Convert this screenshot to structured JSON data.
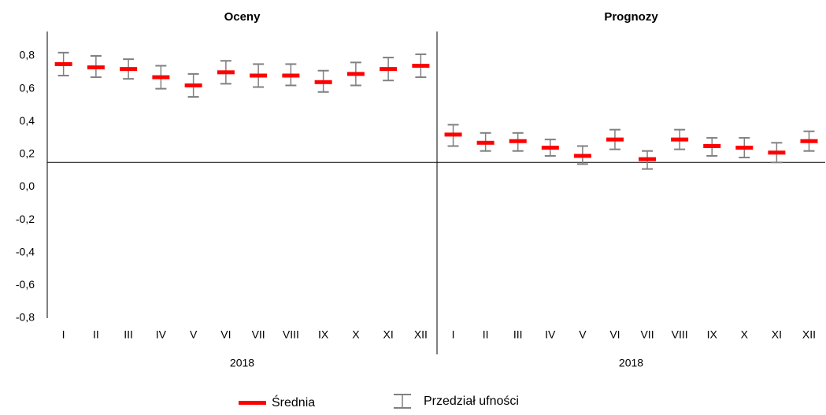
{
  "chart_data": {
    "type": "errorbar",
    "ylim": [
      -0.8,
      0.8
    ],
    "yticks": [
      {
        "value": -0.8,
        "label": "-0,8"
      },
      {
        "value": -0.6,
        "label": "-0,6"
      },
      {
        "value": -0.4,
        "label": "-0,4"
      },
      {
        "value": -0.2,
        "label": "-0,2"
      },
      {
        "value": 0,
        "label": "0,0"
      },
      {
        "value": 0.2,
        "label": "0,2"
      },
      {
        "value": 0.4,
        "label": "0,4"
      },
      {
        "value": 0.6,
        "label": "0,6"
      },
      {
        "value": 0.8,
        "label": "0,8"
      }
    ],
    "x_axis_at": 0.15,
    "legend": {
      "mean": {
        "name": "Średnia",
        "color": "#ff0000"
      },
      "interval": {
        "name": "Przedział ufności",
        "color": "#808080"
      }
    },
    "panels": [
      {
        "title": "Oceny",
        "group": "2018",
        "categories": [
          "I",
          "II",
          "III",
          "IV",
          "V",
          "VI",
          "VII",
          "VIII",
          "IX",
          "X",
          "XI",
          "XII"
        ],
        "mean": [
          0.75,
          0.73,
          0.72,
          0.67,
          0.62,
          0.7,
          0.68,
          0.68,
          0.64,
          0.69,
          0.72,
          0.74
        ],
        "low": [
          0.68,
          0.67,
          0.66,
          0.6,
          0.55,
          0.63,
          0.61,
          0.62,
          0.58,
          0.62,
          0.65,
          0.67
        ],
        "high": [
          0.82,
          0.8,
          0.78,
          0.74,
          0.69,
          0.77,
          0.75,
          0.75,
          0.71,
          0.76,
          0.79,
          0.81
        ]
      },
      {
        "title": "Prognozy",
        "group": "2018",
        "categories": [
          "I",
          "II",
          "III",
          "IV",
          "V",
          "VI",
          "VII",
          "VIII",
          "IX",
          "X",
          "XI",
          "XII"
        ],
        "mean": [
          0.32,
          0.27,
          0.28,
          0.24,
          0.19,
          0.29,
          0.17,
          0.29,
          0.25,
          0.24,
          0.21,
          0.28
        ],
        "low": [
          0.25,
          0.22,
          0.22,
          0.19,
          0.14,
          0.23,
          0.11,
          0.23,
          0.19,
          0.18,
          0.15,
          0.22
        ],
        "high": [
          0.38,
          0.33,
          0.33,
          0.29,
          0.25,
          0.35,
          0.22,
          0.35,
          0.3,
          0.3,
          0.27,
          0.34
        ]
      }
    ]
  }
}
